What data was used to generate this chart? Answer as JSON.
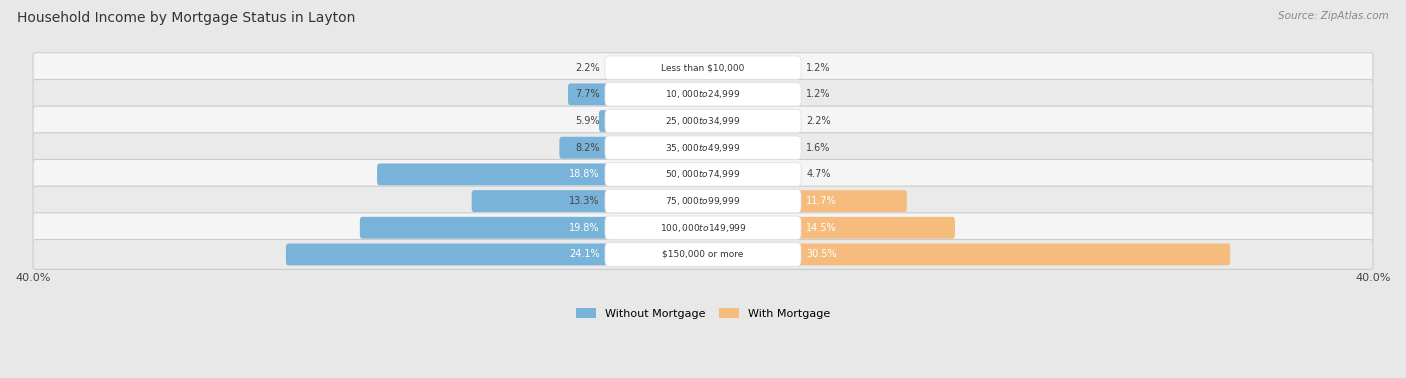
{
  "title": "Household Income by Mortgage Status in Layton",
  "source": "Source: ZipAtlas.com",
  "categories": [
    "Less than $10,000",
    "$10,000 to $24,999",
    "$25,000 to $34,999",
    "$35,000 to $49,999",
    "$50,000 to $74,999",
    "$75,000 to $99,999",
    "$100,000 to $149,999",
    "$150,000 or more"
  ],
  "without_mortgage": [
    2.2,
    7.7,
    5.9,
    8.2,
    18.8,
    13.3,
    19.8,
    24.1
  ],
  "with_mortgage": [
    1.2,
    1.2,
    2.2,
    1.6,
    4.7,
    11.7,
    14.5,
    30.5
  ],
  "color_without": "#7ab3d9",
  "color_with": "#f5bc7e",
  "axis_limit": 40.0,
  "bg_color": "#e8e8e8",
  "row_bg_even": "#f5f5f5",
  "row_bg_odd": "#eaeaea",
  "label_bg": "#ffffff"
}
